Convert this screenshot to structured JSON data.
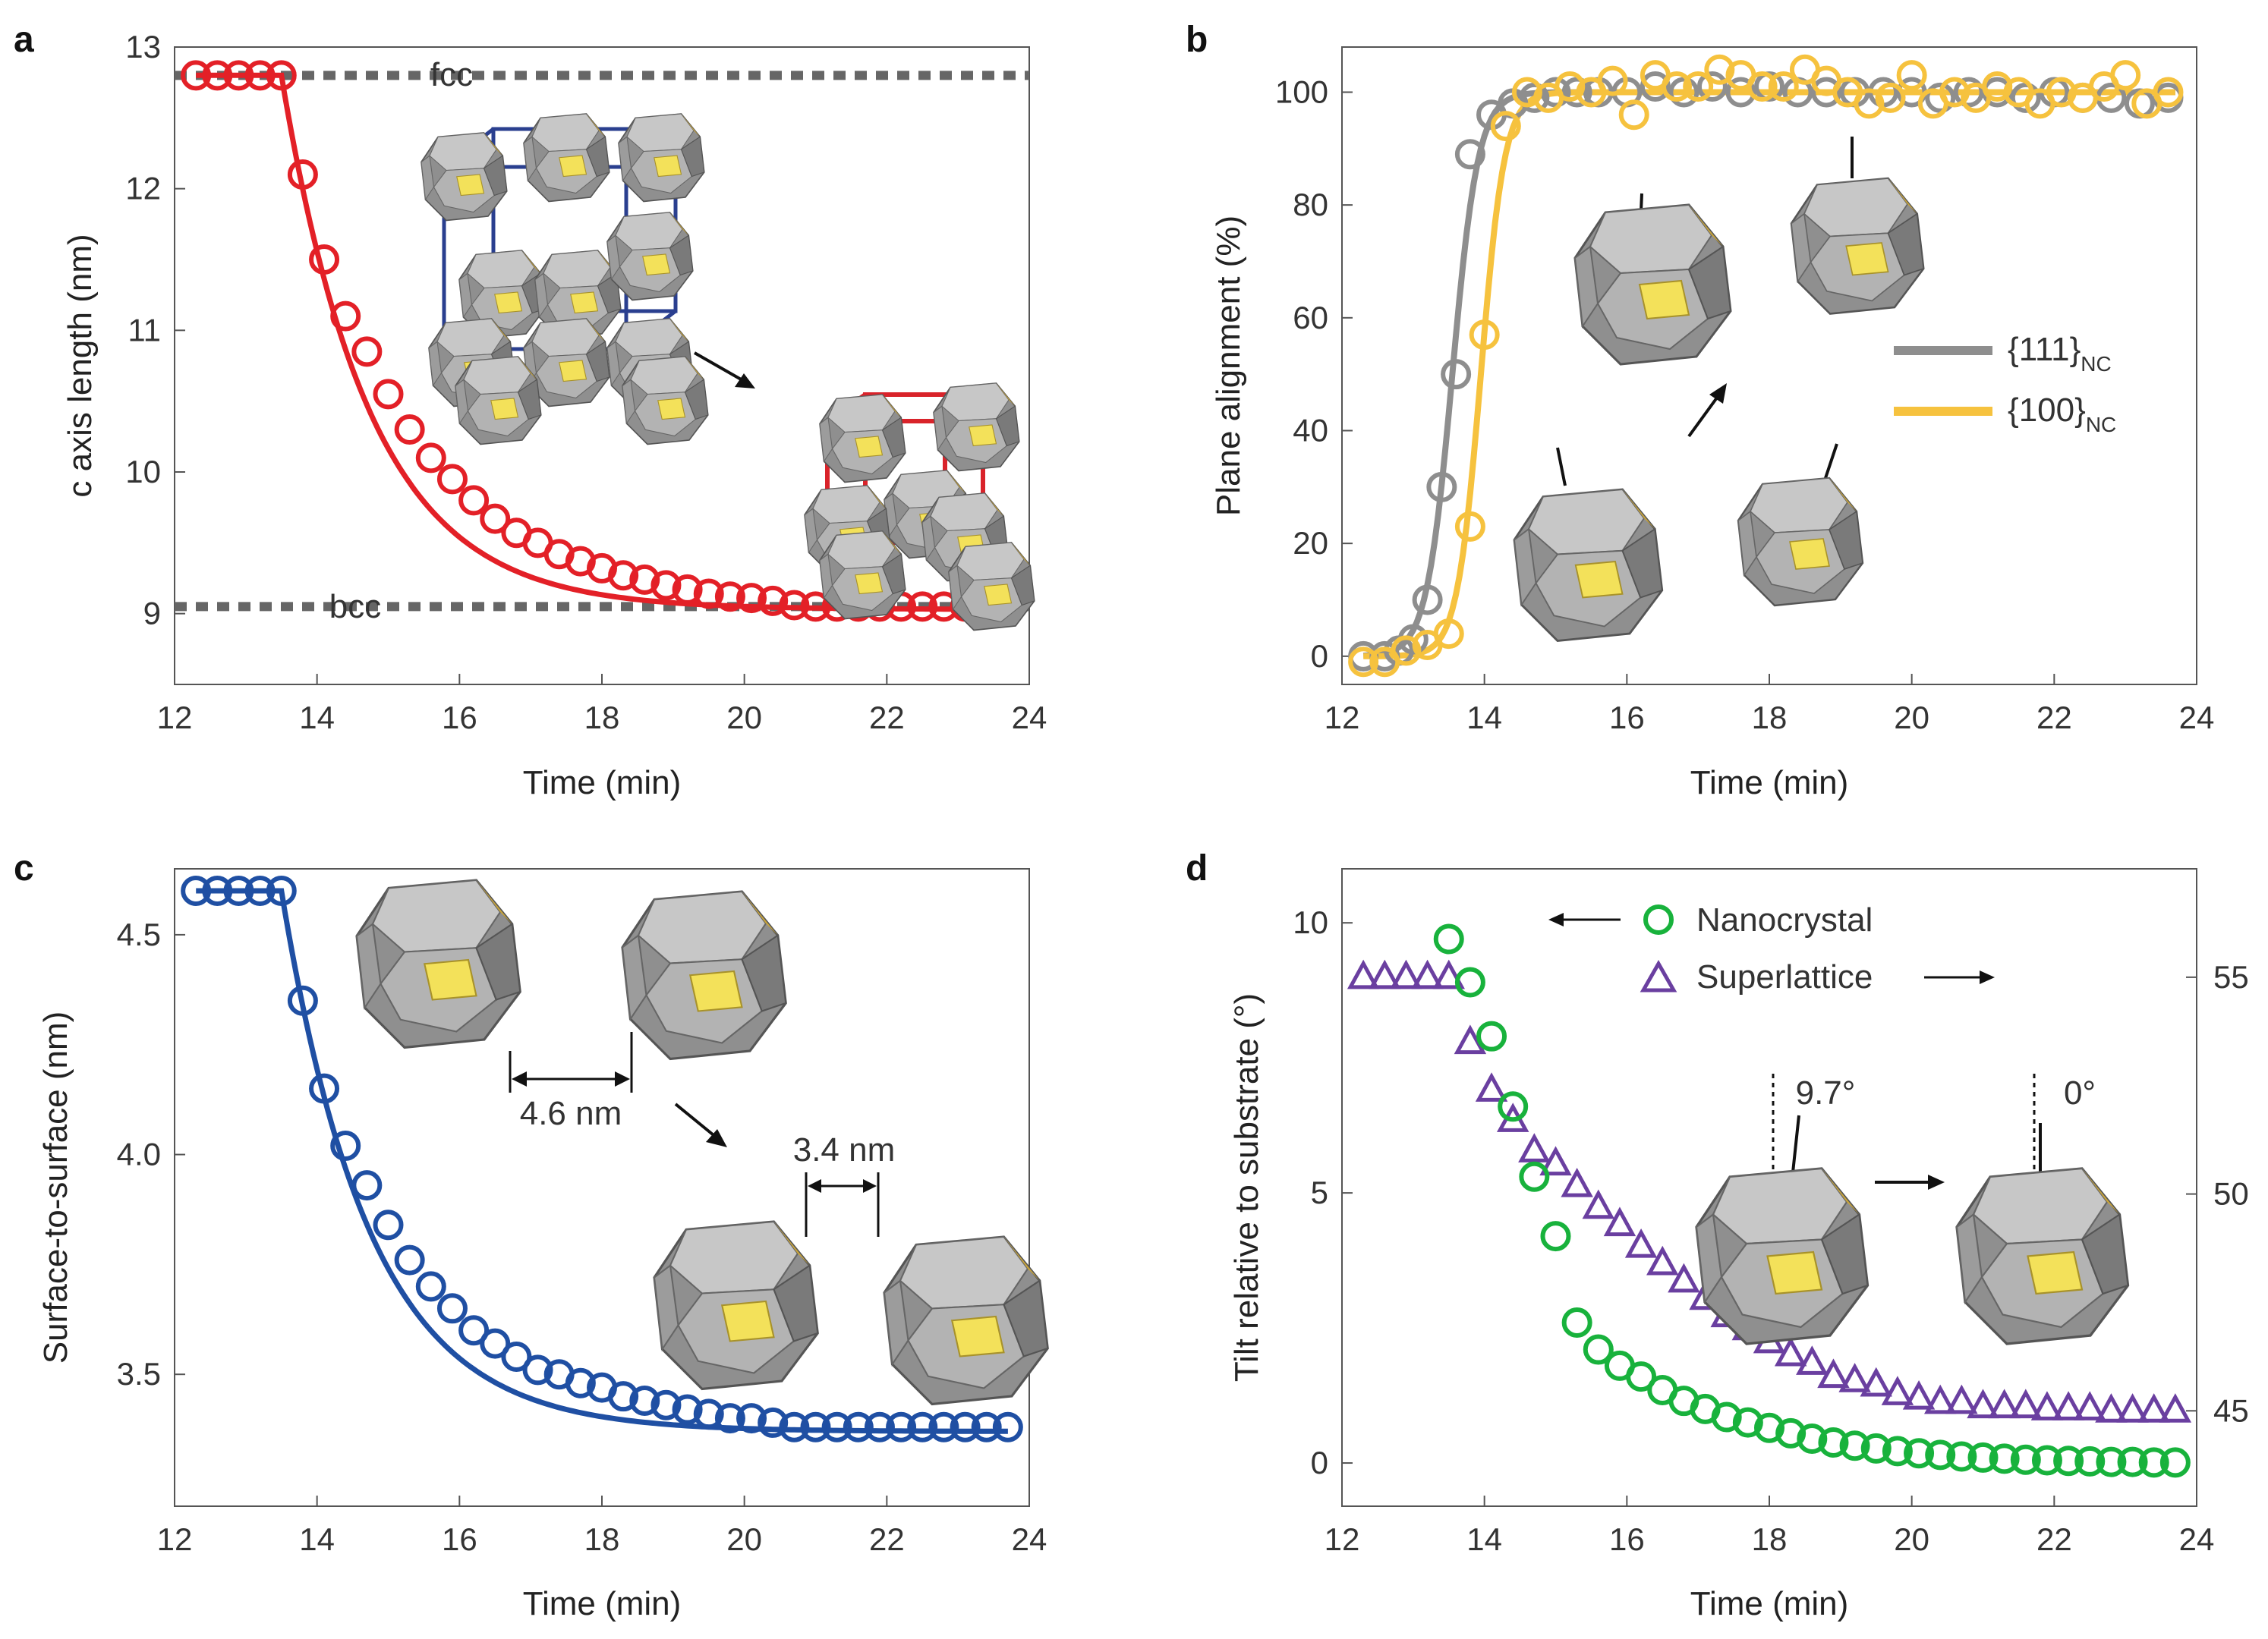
{
  "colors": {
    "red": "#e32027",
    "gray": "#8e8e8e",
    "yellow": "#f6c23e",
    "blue": "#1f4fa3",
    "green": "#18b23c",
    "purple": "#6a3fa0",
    "dotted": "#666666",
    "facet_yellow": "#f3e15a",
    "facet_gold": "#c9a53a",
    "facet_light": "#bdbdbd",
    "facet_mid": "#9a9a9a",
    "facet_dark": "#6e6e6e"
  },
  "chart_data": [
    {
      "panel": "a",
      "type": "scatter",
      "xlabel": "Time (min)",
      "ylabel": "c axis length (nm)",
      "xlim": [
        12,
        24
      ],
      "ylim": [
        8.5,
        13
      ],
      "xticks": [
        12,
        14,
        16,
        18,
        20,
        22,
        24
      ],
      "yticks": [
        9,
        10,
        11,
        12,
        13
      ],
      "reference_lines": [
        {
          "label": "fcc",
          "y": 12.8
        },
        {
          "label": "bcc",
          "y": 9.05
        }
      ],
      "fit": {
        "type": "exponential",
        "t0": 13.5,
        "y0": 12.8,
        "yinf": 9.03,
        "tau": 1.25
      },
      "series": [
        {
          "marker": "circle",
          "color": "red",
          "x": [
            12.3,
            12.6,
            12.9,
            13.2,
            13.5,
            13.8,
            14.1,
            14.4,
            14.7,
            15.0,
            15.3,
            15.6,
            15.9,
            16.2,
            16.5,
            16.8,
            17.1,
            17.4,
            17.7,
            18.0,
            18.3,
            18.6,
            18.9,
            19.2,
            19.5,
            19.8,
            20.1,
            20.4,
            20.7,
            21.0,
            21.3,
            21.6,
            21.9,
            22.2,
            22.5,
            22.8,
            23.1,
            23.4,
            23.7
          ],
          "values": [
            12.8,
            12.8,
            12.8,
            12.8,
            12.8,
            12.1,
            11.5,
            11.1,
            10.85,
            10.55,
            10.3,
            10.1,
            9.95,
            9.8,
            9.67,
            9.57,
            9.5,
            9.42,
            9.37,
            9.32,
            9.27,
            9.24,
            9.2,
            9.17,
            9.14,
            9.12,
            9.11,
            9.09,
            9.06,
            9.05,
            9.05,
            9.05,
            9.05,
            9.05,
            9.05,
            9.05,
            9.05,
            9.05,
            9.05
          ]
        }
      ]
    },
    {
      "panel": "b",
      "type": "scatter",
      "xlabel": "Time (min)",
      "ylabel": "Plane alignment (%)",
      "xlim": [
        12,
        24
      ],
      "ylim": [
        -5,
        108
      ],
      "xticks": [
        12,
        14,
        16,
        18,
        20,
        22,
        24
      ],
      "yticks": [
        0,
        20,
        40,
        60,
        80,
        100
      ],
      "series": [
        {
          "name": "{111}",
          "subscript": "NC",
          "color": "gray",
          "fit": {
            "type": "sigmoid",
            "x0": 13.55,
            "k": 5.5
          },
          "x": [
            12.3,
            12.6,
            12.8,
            13.0,
            13.2,
            13.4,
            13.6,
            13.8,
            14.1,
            14.4,
            14.7,
            15.0,
            15.3,
            15.6,
            16.0,
            16.4,
            16.8,
            17.2,
            17.6,
            18.0,
            18.4,
            18.8,
            19.2,
            19.6,
            20.0,
            20.4,
            20.8,
            21.2,
            21.6,
            22.0,
            22.4,
            22.8,
            23.2,
            23.6
          ],
          "values": [
            0,
            0,
            1,
            3,
            10,
            30,
            50,
            89,
            96,
            98,
            99,
            100,
            100,
            100,
            100,
            101,
            100,
            101,
            100,
            101,
            100,
            100,
            100,
            100,
            100,
            99,
            100,
            100,
            99,
            100,
            99,
            99,
            98,
            99
          ]
        },
        {
          "name": "{100}",
          "subscript": "NC",
          "color": "yellow",
          "fit": {
            "type": "sigmoid",
            "x0": 13.95,
            "k": 6.0
          },
          "x": [
            12.3,
            12.6,
            12.9,
            13.2,
            13.5,
            13.8,
            14.0,
            14.3,
            14.6,
            14.9,
            15.2,
            15.5,
            15.8,
            16.1,
            16.4,
            16.7,
            17.0,
            17.3,
            17.6,
            17.9,
            18.2,
            18.5,
            18.8,
            19.1,
            19.4,
            19.7,
            20.0,
            20.3,
            20.6,
            20.9,
            21.2,
            21.5,
            21.8,
            22.1,
            22.4,
            22.7,
            23.0,
            23.3,
            23.6
          ],
          "values": [
            -1,
            -1,
            1,
            2,
            4,
            23,
            57,
            94,
            100,
            99,
            101,
            100,
            102,
            96,
            103,
            101,
            101,
            104,
            103,
            101,
            101,
            104,
            102,
            100,
            98,
            99,
            103,
            98,
            100,
            99,
            101,
            100,
            98,
            100,
            99,
            101,
            103,
            98,
            100
          ]
        }
      ]
    },
    {
      "panel": "c",
      "type": "scatter",
      "xlabel": "Time (min)",
      "ylabel": "Surface-to-surface (nm)",
      "xlim": [
        12,
        24
      ],
      "ylim": [
        3.2,
        4.65
      ],
      "xticks": [
        12,
        14,
        16,
        18,
        20,
        22,
        24
      ],
      "yticks": [
        3.5,
        4.0,
        4.5
      ],
      "ytick_labels": [
        "3.5",
        "4.0",
        "4.5"
      ],
      "fit": {
        "type": "exponential",
        "t0": 13.5,
        "y0": 4.6,
        "yinf": 3.37,
        "tau": 1.25
      },
      "series": [
        {
          "marker": "circle",
          "color": "blue",
          "x": [
            12.3,
            12.6,
            12.9,
            13.2,
            13.5,
            13.8,
            14.1,
            14.4,
            14.7,
            15.0,
            15.3,
            15.6,
            15.9,
            16.2,
            16.5,
            16.8,
            17.1,
            17.4,
            17.7,
            18.0,
            18.3,
            18.6,
            18.9,
            19.2,
            19.5,
            19.8,
            20.1,
            20.4,
            20.7,
            21.0,
            21.3,
            21.6,
            21.9,
            22.2,
            22.5,
            22.8,
            23.1,
            23.4,
            23.7
          ],
          "values": [
            4.6,
            4.6,
            4.6,
            4.6,
            4.6,
            4.35,
            4.15,
            4.02,
            3.93,
            3.84,
            3.76,
            3.7,
            3.65,
            3.6,
            3.57,
            3.54,
            3.51,
            3.5,
            3.48,
            3.47,
            3.45,
            3.44,
            3.43,
            3.42,
            3.41,
            3.4,
            3.4,
            3.39,
            3.38,
            3.38,
            3.38,
            3.38,
            3.38,
            3.38,
            3.38,
            3.38,
            3.38,
            3.38,
            3.38
          ]
        }
      ],
      "annotations": [
        "4.6 nm",
        "3.4 nm"
      ]
    },
    {
      "panel": "d",
      "type": "scatter",
      "xlabel": "Time (min)",
      "ylabel": "Tilt relative to substrate (°)",
      "xlim": [
        12,
        24
      ],
      "ylim": [
        -0.8,
        11
      ],
      "y2lim": [
        42.8,
        57.5
      ],
      "xticks": [
        12,
        14,
        16,
        18,
        20,
        22,
        24
      ],
      "yticks": [
        0,
        5,
        10
      ],
      "y2ticks": [
        45,
        50,
        55
      ],
      "series": [
        {
          "name": "Nanocrystal",
          "marker": "circle",
          "color": "green",
          "axis": "left",
          "x": [
            13.5,
            13.8,
            14.1,
            14.4,
            14.7,
            15.0,
            15.3,
            15.6,
            15.9,
            16.2,
            16.5,
            16.8,
            17.1,
            17.4,
            17.7,
            18.0,
            18.3,
            18.6,
            18.9,
            19.2,
            19.5,
            19.8,
            20.1,
            20.4,
            20.7,
            21.0,
            21.3,
            21.6,
            21.9,
            22.2,
            22.5,
            22.8,
            23.1,
            23.4,
            23.7
          ],
          "values": [
            9.7,
            8.9,
            7.9,
            6.6,
            5.3,
            4.2,
            2.6,
            2.1,
            1.8,
            1.6,
            1.35,
            1.15,
            1.0,
            0.85,
            0.75,
            0.65,
            0.55,
            0.45,
            0.38,
            0.32,
            0.27,
            0.22,
            0.18,
            0.15,
            0.12,
            0.1,
            0.08,
            0.06,
            0.05,
            0.04,
            0.03,
            0.02,
            0.02,
            0.01,
            0.01
          ]
        },
        {
          "name": "Superlattice",
          "marker": "triangle",
          "color": "purple",
          "axis": "right",
          "x": [
            12.3,
            12.6,
            12.9,
            13.2,
            13.5,
            13.8,
            14.1,
            14.4,
            14.7,
            15.0,
            15.3,
            15.6,
            15.9,
            16.2,
            16.5,
            16.8,
            17.1,
            17.4,
            17.7,
            18.0,
            18.3,
            18.6,
            18.9,
            19.2,
            19.5,
            19.8,
            20.1,
            20.4,
            20.7,
            21.0,
            21.3,
            21.6,
            21.9,
            22.2,
            22.5,
            22.8,
            23.1,
            23.4,
            23.7
          ],
          "values": [
            55,
            55,
            55,
            55,
            55,
            53.5,
            52.4,
            51.7,
            51.0,
            50.7,
            50.2,
            49.7,
            49.3,
            48.8,
            48.4,
            48.0,
            47.6,
            47.2,
            46.9,
            46.6,
            46.3,
            46.1,
            45.8,
            45.7,
            45.6,
            45.4,
            45.3,
            45.2,
            45.2,
            45.1,
            45.1,
            45.1,
            45.05,
            45.05,
            45.05,
            45.0,
            45.0,
            45.0,
            45.0
          ]
        }
      ],
      "annotations": [
        "9.7°",
        "0°"
      ]
    }
  ],
  "panels": {
    "a": {
      "letter": "a",
      "ylabel": "c axis length (nm)",
      "xlabel": "Time (min)",
      "fcc_label": "fcc",
      "bcc_label": "bcc"
    },
    "b": {
      "letter": "b",
      "ylabel": "Plane alignment (%)",
      "xlabel": "Time (min)",
      "legend": [
        {
          "name": "{111}",
          "sub": "NC"
        },
        {
          "name": "{100}",
          "sub": "NC"
        }
      ]
    },
    "c": {
      "letter": "c",
      "ylabel": "Surface-to-surface (nm)",
      "xlabel": "Time (min)",
      "gap1": "4.6 nm",
      "gap2": "3.4 nm"
    },
    "d": {
      "letter": "d",
      "ylabel": "Tilt relative to substrate (°)",
      "xlabel": "Time (min)",
      "legend_nc": "Nanocrystal",
      "legend_sl": "Superlattice",
      "angle1": "9.7°",
      "angle2": "0°"
    }
  }
}
